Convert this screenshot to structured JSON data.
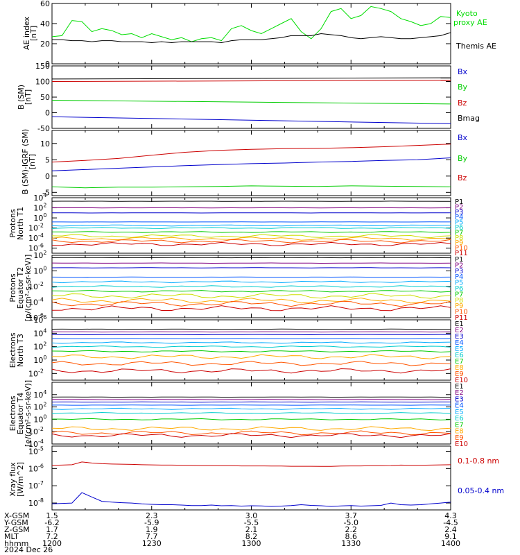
{
  "chart_data": [
    {
      "type": "line",
      "ylabel": "AE index [nT]",
      "ylim": [
        0,
        60
      ],
      "yticks": [
        "0",
        "20",
        "40",
        "60"
      ],
      "x": [
        1200,
        1203,
        1206,
        1209,
        1212,
        1215,
        1218,
        1221,
        1224,
        1227,
        1230,
        1233,
        1236,
        1239,
        1242,
        1245,
        1248,
        1251,
        1254,
        1257,
        1300,
        1303,
        1306,
        1309,
        1312,
        1315,
        1318,
        1321,
        1324,
        1327,
        1330,
        1333,
        1336,
        1339,
        1342,
        1345,
        1348,
        1351,
        1354,
        1357,
        1400
      ],
      "series": [
        {
          "name": "Kyoto proxy AE",
          "color": "#00dd00",
          "values": [
            27,
            28,
            43,
            42,
            32,
            35,
            33,
            29,
            30,
            26,
            30,
            27,
            24,
            26,
            22,
            25,
            26,
            23,
            35,
            38,
            33,
            30,
            35,
            40,
            45,
            32,
            25,
            35,
            52,
            55,
            45,
            48,
            57,
            55,
            52,
            45,
            42,
            38,
            40,
            47,
            46
          ]
        },
        {
          "name": "Themis AE",
          "color": "#000000",
          "values": [
            24,
            24,
            23,
            23,
            22,
            23,
            23,
            22,
            22,
            22,
            21,
            22,
            21,
            22,
            22,
            22,
            22,
            21,
            23,
            24,
            24,
            24,
            25,
            26,
            28,
            28,
            28,
            30,
            29,
            28,
            26,
            25,
            26,
            27,
            26,
            25,
            25,
            26,
            27,
            28,
            31
          ]
        }
      ]
    },
    {
      "type": "line",
      "ylabel": "B (SM) [nT]",
      "ylim": [
        -50,
        150
      ],
      "yticks": [
        "150",
        "100",
        "50",
        "0",
        "-50"
      ],
      "x": [
        1200,
        1400
      ],
      "series": [
        {
          "name": "Bx",
          "color": "#0000cc",
          "values": [
            -13,
            -35
          ]
        },
        {
          "name": "By",
          "color": "#00cc00",
          "values": [
            40,
            28
          ]
        },
        {
          "name": "Bz",
          "color": "#cc0000",
          "values": [
            100,
            104
          ]
        },
        {
          "name": "Bmag",
          "color": "#000000",
          "values": [
            108,
            112
          ]
        }
      ]
    },
    {
      "type": "line",
      "ylabel": "B (SM)-IGRF (SM) [nT]",
      "ylim": [
        -6,
        14
      ],
      "yticks": [
        "10",
        "5",
        "0",
        "-5"
      ],
      "x": [
        1200,
        1210,
        1220,
        1230,
        1240,
        1250,
        1300,
        1310,
        1320,
        1330,
        1340,
        1350,
        1400
      ],
      "series": [
        {
          "name": "Bx",
          "color": "#0000cc",
          "values": [
            1.6,
            2.0,
            2.4,
            2.8,
            3.2,
            3.5,
            3.8,
            4.0,
            4.3,
            4.5,
            4.8,
            5.0,
            5.6
          ]
        },
        {
          "name": "By",
          "color": "#00cc00",
          "values": [
            -3.3,
            -3.6,
            -3.4,
            -3.4,
            -3.3,
            -3.2,
            -3.0,
            -3.1,
            -3.2,
            -3.0,
            -3.1,
            -3.2,
            -3.3
          ]
        },
        {
          "name": "Bz",
          "color": "#cc0000",
          "values": [
            4.3,
            4.8,
            5.4,
            6.4,
            7.3,
            7.9,
            8.2,
            8.4,
            8.5,
            8.7,
            9.0,
            9.4,
            9.8
          ]
        }
      ]
    },
    {
      "type": "line",
      "title": "Protons North T1",
      "ylim": [
        -7,
        4
      ],
      "yscale": "log",
      "yticks": [
        "10^4",
        "10^2",
        "10^0",
        "10^-2",
        "10^-4",
        "10^-6"
      ],
      "channels": [
        "P1",
        "P2",
        "P3",
        "P4",
        "P5",
        "P6",
        "P7",
        "P8",
        "P9",
        "P10",
        "P11"
      ],
      "colors": [
        "#000000",
        "#800080",
        "#0000cc",
        "#0055ff",
        "#00aaff",
        "#00cccc",
        "#00cc00",
        "#ccdd00",
        "#ffaa00",
        "#ff5500",
        "#cc0000"
      ],
      "log10_levels": [
        3.3,
        2.0,
        1.0,
        -0.8,
        -1.5,
        -2.0,
        -2.8,
        -3.6,
        -4.1,
        -4.6,
        -5.2
      ]
    },
    {
      "type": "line",
      "title": "Protons Equator T2",
      "ylabel": "[p/(cm^2-s-sr-keV)]",
      "ylim": [
        -6,
        2
      ],
      "yscale": "log",
      "yticks": [
        "10^2",
        "10^0",
        "10^-2",
        "10^-4",
        "10^-6"
      ],
      "channels": [
        "P1",
        "P2",
        "P3",
        "P4",
        "P5",
        "P6",
        "P7",
        "P8",
        "P9",
        "P10",
        "P11"
      ],
      "colors": [
        "#000000",
        "#800080",
        "#0000cc",
        "#0055ff",
        "#00aaff",
        "#00cccc",
        "#00cc00",
        "#ccdd00",
        "#ffaa00",
        "#ff5500",
        "#cc0000"
      ],
      "log10_levels": [
        1.7,
        1.0,
        0.4,
        -0.8,
        -1.4,
        -2.0,
        -2.6,
        -3.2,
        -3.8,
        -4.2,
        -4.8
      ]
    },
    {
      "type": "line",
      "title": "Electrons North T3",
      "ylim": [
        -3,
        6
      ],
      "yscale": "log",
      "yticks": [
        "10^6",
        "10^4",
        "10^2",
        "10^0",
        "10^-2"
      ],
      "channels": [
        "E1",
        "E2",
        "E3",
        "E4",
        "E5",
        "E6",
        "E7",
        "E8",
        "E9",
        "E10"
      ],
      "colors": [
        "#000000",
        "#800080",
        "#0000cc",
        "#0055ff",
        "#00aaff",
        "#00cccc",
        "#00cc00",
        "#ffaa00",
        "#ff5500",
        "#cc0000"
      ],
      "log10_levels": [
        4.6,
        4.2,
        3.8,
        3.2,
        2.6,
        2.0,
        1.3,
        0.5,
        -0.5,
        -1.6
      ]
    },
    {
      "type": "line",
      "title": "Electrons Equator T4",
      "ylabel": "[e/(cm^2-s-sr-keV)]",
      "ylim": [
        -4,
        6
      ],
      "yscale": "log",
      "yticks": [
        "10^4",
        "10^2",
        "10^0",
        "10^-2",
        "10^-4"
      ],
      "channels": [
        "E1",
        "E2",
        "E3",
        "E4",
        "E5",
        "E6",
        "E7",
        "E8",
        "E9",
        "E10"
      ],
      "colors": [
        "#000000",
        "#800080",
        "#0000cc",
        "#0055ff",
        "#00aaff",
        "#00cccc",
        "#00cc00",
        "#ffaa00",
        "#ff5500",
        "#cc0000"
      ],
      "log10_levels": [
        3.6,
        3.2,
        2.8,
        2.3,
        1.7,
        1.0,
        0.0,
        -1.5,
        -2.2,
        -2.6
      ]
    },
    {
      "type": "line",
      "ylabel": "Xray flux [W/m^2]",
      "ylim": [
        -8.4,
        -4.7
      ],
      "yscale": "log",
      "yticks": [
        "10^-5",
        "10^-6",
        "10^-7",
        "10^-8"
      ],
      "x": [
        1200,
        1203,
        1206,
        1209,
        1212,
        1215,
        1218,
        1221,
        1224,
        1227,
        1230,
        1233,
        1236,
        1239,
        1242,
        1245,
        1248,
        1251,
        1254,
        1257,
        1300,
        1303,
        1306,
        1309,
        1312,
        1315,
        1318,
        1321,
        1324,
        1327,
        1330,
        1333,
        1336,
        1339,
        1342,
        1345,
        1348,
        1351,
        1354,
        1357,
        1400
      ],
      "series": [
        {
          "name": "0.1-0.8 nm",
          "color": "#cc0000",
          "values": [
            -5.82,
            -5.8,
            -5.78,
            -5.62,
            -5.68,
            -5.72,
            -5.74,
            -5.75,
            -5.76,
            -5.78,
            -5.79,
            -5.8,
            -5.8,
            -5.81,
            -5.82,
            -5.83,
            -5.83,
            -5.84,
            -5.84,
            -5.85,
            -5.85,
            -5.85,
            -5.86,
            -5.86,
            -5.87,
            -5.87,
            -5.87,
            -5.88,
            -5.88,
            -5.86,
            -5.85,
            -5.85,
            -5.84,
            -5.84,
            -5.83,
            -5.8,
            -5.82,
            -5.81,
            -5.8,
            -5.79,
            -5.78
          ]
        },
        {
          "name": "0.05-0.4 nm",
          "color": "#0000cc",
          "values": [
            -8.05,
            -8.02,
            -8.0,
            -7.4,
            -7.65,
            -7.9,
            -7.95,
            -7.98,
            -8.0,
            -8.05,
            -8.08,
            -8.1,
            -8.1,
            -8.12,
            -8.15,
            -8.15,
            -8.12,
            -8.16,
            -8.15,
            -8.18,
            -8.16,
            -8.17,
            -8.2,
            -8.18,
            -8.15,
            -8.1,
            -8.14,
            -8.16,
            -8.2,
            -8.17,
            -8.15,
            -8.18,
            -8.16,
            -8.14,
            -8.0,
            -8.1,
            -8.12,
            -8.1,
            -8.05,
            -8.0,
            -7.95
          ]
        }
      ]
    }
  ],
  "axis": {
    "rows": [
      {
        "label": "X-GSM",
        "values": [
          "1.5",
          "2.3",
          "3.0",
          "3.7",
          "4.3"
        ]
      },
      {
        "label": "Y-GSM",
        "values": [
          "-6.2",
          "-5.9",
          "-5.5",
          "-5.0",
          "-4.5"
        ]
      },
      {
        "label": "Z-GSM",
        "values": [
          "1.7",
          "1.9",
          "2.1",
          "2.2",
          "2.4"
        ]
      },
      {
        "label": "MLT",
        "values": [
          "7.2",
          "7.7",
          "8.2",
          "8.6",
          "9.1"
        ]
      },
      {
        "label": "hhmm",
        "values": [
          "1200",
          "1230",
          "1300",
          "1330",
          "1400"
        ]
      }
    ],
    "date": "2024 Dec 26"
  },
  "labels": {
    "ae_y": "AE index",
    "ae_unit": "[nT]",
    "kyoto1": "Kyoto",
    "kyoto2": "proxy AE",
    "themis": "Themis AE",
    "b_y": "B (SM)",
    "b_unit": "[nT]",
    "bres_y": "B (SM)-IGRF (SM)",
    "bres_unit": "[nT]",
    "p1_a": "Protons",
    "p1_b": "North T1",
    "p2_a": "Protons",
    "p2_b": "Equator T2",
    "p2_c": "[p/(cm²-s-sr-keV)]",
    "e1_a": "Electrons",
    "e1_b": "North T3",
    "e2_a": "Electrons",
    "e2_b": "Equator T4",
    "e2_c": "[e/(cm²-s-sr-keV)]",
    "xr_a": "Xray flux",
    "xr_b": "[W/m^2]"
  }
}
